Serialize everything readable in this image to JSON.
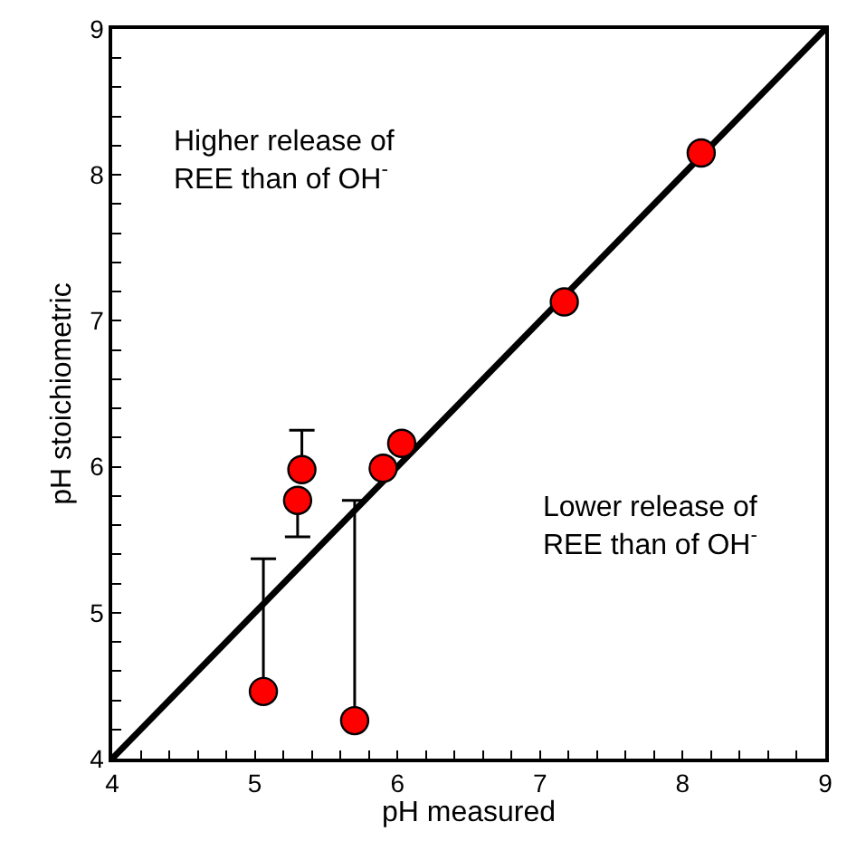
{
  "chart_data": {
    "type": "scatter",
    "xlabel": "pH measured",
    "ylabel": "pH stoichiometric",
    "xlim": [
      4,
      9
    ],
    "ylim": [
      4,
      9
    ],
    "xticks": [
      4,
      {
        "value": 4.2,
        "label": null
      },
      {
        "value": 4.4,
        "label": null
      },
      {
        "value": 4.6,
        "label": null
      },
      {
        "value": 4.8,
        "label": null
      },
      5,
      {
        "value": 5.2,
        "label": null
      },
      {
        "value": 5.4,
        "label": null
      },
      {
        "value": 5.6,
        "label": null
      },
      {
        "value": 5.8,
        "label": null
      },
      6,
      {
        "value": 6.2,
        "label": null
      },
      {
        "value": 6.4,
        "label": null
      },
      {
        "value": 6.6,
        "label": null
      },
      {
        "value": 6.8,
        "label": null
      },
      7,
      {
        "value": 7.2,
        "label": null
      },
      {
        "value": 7.4,
        "label": null
      },
      {
        "value": 7.6,
        "label": null
      },
      {
        "value": 7.8,
        "label": null
      },
      8,
      {
        "value": 8.2,
        "label": null
      },
      {
        "value": 8.4,
        "label": null
      },
      {
        "value": 8.6,
        "label": null
      },
      {
        "value": 8.8,
        "label": null
      },
      9
    ],
    "yticks": [
      4,
      {
        "value": 4.2,
        "label": null
      },
      {
        "value": 4.4,
        "label": null
      },
      {
        "value": 4.6,
        "label": null
      },
      {
        "value": 4.8,
        "label": null
      },
      5,
      {
        "value": 5.2,
        "label": null
      },
      {
        "value": 5.4,
        "label": null
      },
      {
        "value": 5.6,
        "label": null
      },
      {
        "value": 5.8,
        "label": null
      },
      6,
      {
        "value": 6.2,
        "label": null
      },
      {
        "value": 6.4,
        "label": null
      },
      {
        "value": 6.6,
        "label": null
      },
      {
        "value": 6.8,
        "label": null
      },
      7,
      {
        "value": 7.2,
        "label": null
      },
      {
        "value": 7.4,
        "label": null
      },
      {
        "value": 7.6,
        "label": null
      },
      {
        "value": 7.8,
        "label": null
      },
      8,
      {
        "value": 8.2,
        "label": null
      },
      {
        "value": 8.4,
        "label": null
      },
      {
        "value": 8.6,
        "label": null
      },
      {
        "value": 8.8,
        "label": null
      },
      9
    ],
    "grid": false,
    "legend": false,
    "series": [
      {
        "type": "line",
        "color": "#000000",
        "x": [
          4,
          9
        ],
        "values": [
          4,
          9
        ],
        "marker": "none"
      },
      {
        "color": "#ff0000",
        "marker": "circle",
        "x": [
          5.06,
          5.7,
          5.3,
          5.33,
          5.9,
          6.03,
          7.17,
          8.13
        ],
        "values": [
          4.46,
          4.26,
          5.77,
          5.98,
          5.99,
          6.16,
          7.13,
          8.15
        ],
        "errors": [
          [
            4.46,
            5.37
          ],
          [
            4.26,
            5.77
          ],
          [
            5.52,
            5.77
          ],
          [
            5.98,
            6.25
          ],
          null,
          null,
          null,
          null
        ]
      }
    ],
    "annotations": [
      {
        "text": "Higher release of\nREE than of OH$^{-}$"
      },
      {
        "text": "Lower release of\nREE than of OH$^{-}$"
      }
    ]
  }
}
